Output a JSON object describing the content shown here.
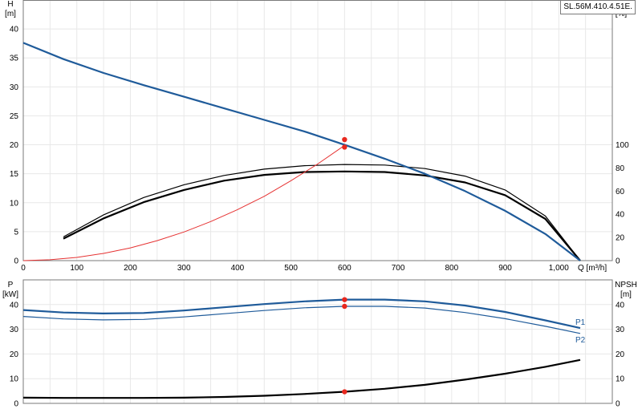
{
  "model_label": "SL.56M.410.4.51E.",
  "colors": {
    "head": "#1f5b9a",
    "efficiency": "#000000",
    "system": "#e63232",
    "p1": "#1f5b9a",
    "p2": "#1f5b9a",
    "npsh": "#000000",
    "duty_point": "#e8281e"
  },
  "chart_data": [
    {
      "type": "line",
      "xlabel": "Q [m³/h]",
      "xlim": [
        0,
        1100
      ],
      "x_ticks": [
        "0",
        "100",
        "200",
        "300",
        "400",
        "500",
        "600",
        "700",
        "800",
        "900",
        "1,000"
      ],
      "y_left_label": "H",
      "y_left_unit": "[m]",
      "y_left_lim": [
        0,
        45
      ],
      "y_left_ticks": [
        "0",
        "5",
        "10",
        "15",
        "20",
        "25",
        "30",
        "35",
        "40"
      ],
      "y_right_label": "eta",
      "y_right_unit": "[%]",
      "y_right_lim": [
        0,
        225
      ],
      "y_right_ticks": [
        "0",
        "20",
        "40",
        "60",
        "80",
        "100"
      ],
      "grid": true,
      "series": [
        {
          "key": "head",
          "axis": "left",
          "x": [
            0,
            75,
            150,
            225,
            300,
            375,
            450,
            525,
            600,
            675,
            750,
            825,
            900,
            975,
            1040
          ],
          "y": [
            37.6,
            34.8,
            32.4,
            30.3,
            28.3,
            26.3,
            24.3,
            22.3,
            20.0,
            17.6,
            15.0,
            12.0,
            8.6,
            4.6,
            0
          ]
        },
        {
          "key": "eta_outer",
          "axis": "right",
          "x": [
            75,
            150,
            225,
            300,
            375,
            450,
            525,
            600,
            675,
            750,
            825,
            900,
            975,
            1040
          ],
          "y": [
            20.5,
            39.5,
            54.5,
            65.5,
            73.5,
            79,
            82,
            83,
            82.5,
            79.5,
            73,
            61,
            38.5,
            0
          ]
        },
        {
          "key": "eta",
          "axis": "right",
          "x": [
            75,
            150,
            225,
            300,
            375,
            450,
            525,
            600,
            675,
            750,
            825,
            900,
            975,
            1040
          ],
          "y": [
            19,
            36.5,
            50.5,
            61,
            69,
            74,
            76.5,
            77,
            76.5,
            73.5,
            67.5,
            56.5,
            36,
            0
          ]
        },
        {
          "key": "system",
          "axis": "left",
          "x": [
            0,
            50,
            100,
            150,
            200,
            250,
            300,
            350,
            400,
            450,
            500,
            550,
            600
          ],
          "y": [
            0,
            0.15,
            0.55,
            1.25,
            2.2,
            3.45,
            4.95,
            6.75,
            8.8,
            11.1,
            13.8,
            16.7,
            19.9
          ]
        }
      ],
      "duty_points": [
        {
          "axis": "left",
          "x": 600,
          "y": 20.9
        },
        {
          "axis": "left",
          "x": 600,
          "y": 19.6
        }
      ]
    },
    {
      "type": "line",
      "xlim": [
        0,
        1100
      ],
      "y_left_label": "P",
      "y_left_unit": "[kW]",
      "y_left_lim": [
        0,
        50
      ],
      "y_left_ticks": [
        "0",
        "10",
        "20",
        "30",
        "40"
      ],
      "y_right_label": "NPSH",
      "y_right_unit": "[m]",
      "y_right_lim": [
        0,
        50
      ],
      "y_right_ticks": [
        "0",
        "10",
        "20",
        "30",
        "40"
      ],
      "grid": true,
      "series": [
        {
          "key": "p1",
          "name": "P1",
          "axis": "left",
          "x": [
            0,
            75,
            150,
            225,
            300,
            375,
            450,
            525,
            600,
            675,
            750,
            825,
            900,
            975,
            1040
          ],
          "y": [
            37.8,
            36.8,
            36.4,
            36.6,
            37.6,
            38.9,
            40.2,
            41.3,
            42.0,
            42.0,
            41.3,
            39.6,
            37.0,
            33.6,
            30.5
          ]
        },
        {
          "key": "p2",
          "name": "P2",
          "axis": "left",
          "x": [
            0,
            75,
            150,
            225,
            300,
            375,
            450,
            525,
            600,
            675,
            750,
            825,
            900,
            975,
            1040
          ],
          "y": [
            35.2,
            34.2,
            33.8,
            34.0,
            35.0,
            36.3,
            37.6,
            38.7,
            39.3,
            39.3,
            38.6,
            36.8,
            34.3,
            31.2,
            28.3
          ]
        },
        {
          "key": "npsh",
          "axis": "right",
          "x": [
            0,
            75,
            150,
            225,
            300,
            375,
            450,
            525,
            600,
            675,
            750,
            825,
            900,
            975,
            1040
          ],
          "y": [
            2.3,
            2.2,
            2.2,
            2.2,
            2.3,
            2.6,
            3.1,
            3.8,
            4.7,
            5.9,
            7.5,
            9.6,
            12.0,
            14.8,
            17.6
          ]
        }
      ],
      "duty_points": [
        {
          "axis": "left",
          "x": 600,
          "y": 42.0
        },
        {
          "axis": "left",
          "x": 600,
          "y": 39.3
        },
        {
          "axis": "right",
          "x": 600,
          "y": 4.7
        }
      ]
    }
  ]
}
